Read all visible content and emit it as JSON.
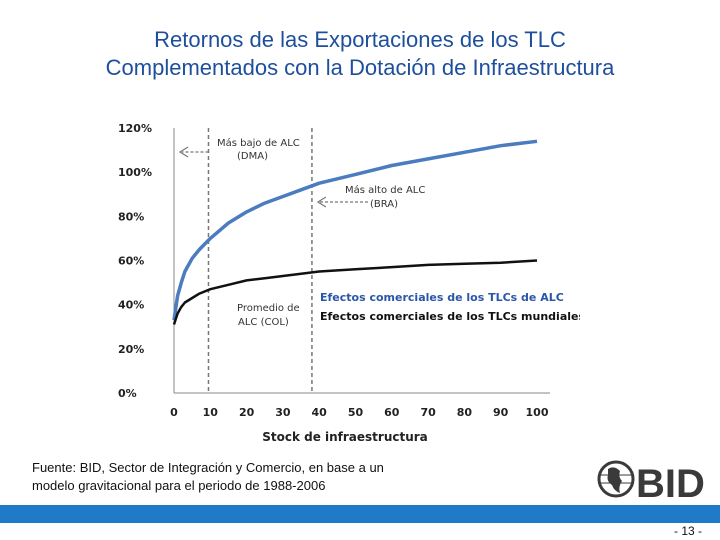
{
  "slide": {
    "title_line1": "Retornos de las Exportaciones de los TLC",
    "title_line2": "Complementados con la Dotación de Infraestructura",
    "source_line1": "Fuente: BID, Sector de Integración y Comercio, en base a un",
    "source_line2": "modelo gravitacional para el periodo de 1988-2006",
    "logo_text": "BID",
    "page_number": "- 13 -"
  },
  "colors": {
    "title": "#1d4f9c",
    "series_alc": "#4a7cbf",
    "series_world": "#111111",
    "footer_bar": "#1f7ac8",
    "legend_alc": "#2a56a8"
  },
  "chart_data": {
    "type": "line",
    "xlabel": "Stock de infraestructura",
    "ylabel": "",
    "xlim": [
      0,
      100
    ],
    "ylim": [
      0,
      120
    ],
    "x_ticks": [
      "0",
      "10",
      "20",
      "30",
      "40",
      "50",
      "60",
      "70",
      "80",
      "90",
      "100"
    ],
    "y_ticks": [
      "0%",
      "20%",
      "40%",
      "60%",
      "80%",
      "100%",
      "120%"
    ],
    "grid": false,
    "series": [
      {
        "name": "Efectos comerciales de los TLCs de ALC",
        "x": [
          0,
          1,
          2,
          3,
          5,
          7,
          10,
          15,
          20,
          25,
          30,
          35,
          40,
          50,
          60,
          70,
          80,
          90,
          100
        ],
        "y": [
          33,
          44,
          50,
          55,
          61,
          65,
          70,
          77,
          82,
          86,
          89,
          92,
          95,
          99,
          103,
          106,
          109,
          112,
          114
        ]
      },
      {
        "name": "Efectos comerciales de los TLCs mundiales",
        "x": [
          0,
          1,
          2,
          3,
          5,
          7,
          10,
          15,
          20,
          25,
          30,
          35,
          40,
          50,
          60,
          70,
          80,
          90,
          100
        ],
        "y": [
          31,
          36,
          39,
          41,
          43,
          45,
          47,
          49,
          51,
          52,
          53,
          54,
          55,
          56,
          57,
          58,
          58.5,
          59,
          60
        ]
      }
    ],
    "annotations": [
      {
        "line1": "Más bajo de ALC",
        "line2": "(DMA)",
        "x": 9.5
      },
      {
        "line1": "Más alto de ALC",
        "line2": "(BRA)",
        "x": 38
      },
      {
        "line1": "Promedio de",
        "line2": "ALC (COL)",
        "x": 9.5
      }
    ]
  }
}
